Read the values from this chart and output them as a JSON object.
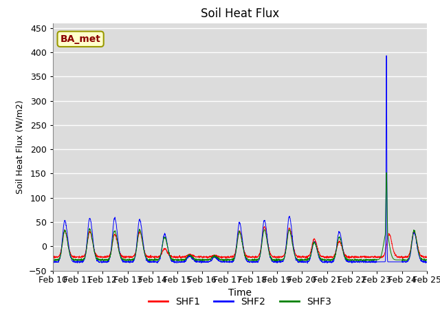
{
  "title": "Soil Heat Flux",
  "ylabel": "Soil Heat Flux (W/m2)",
  "xlabel": "Time",
  "ylim": [
    -50,
    460
  ],
  "yticks": [
    -50,
    0,
    50,
    100,
    150,
    200,
    250,
    300,
    350,
    400,
    450
  ],
  "background_color": "#dcdcdc",
  "line_colors": {
    "SHF1": "red",
    "SHF2": "blue",
    "SHF3": "green"
  },
  "annotation_text": "BA_met",
  "annotation_bg": "#ffffcc",
  "annotation_border": "#999900",
  "n_days": 15,
  "start_day": 10,
  "points_per_day": 144,
  "spike_value_shf2": 425,
  "spike_value_shf3": 180,
  "legend_labels": [
    "SHF1",
    "SHF2",
    "SHF3"
  ],
  "legend_colors": [
    "red",
    "blue",
    "green"
  ]
}
